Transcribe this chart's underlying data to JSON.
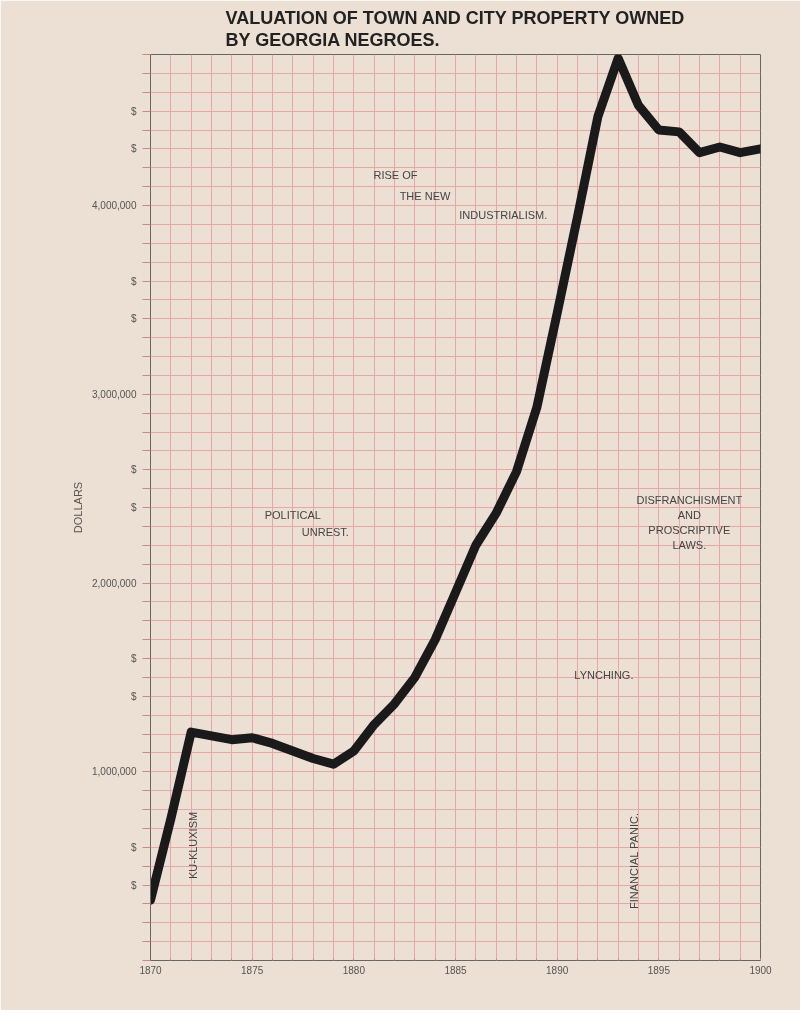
{
  "chart_data": {
    "type": "line",
    "title": "VALUATION OF TOWN AND CITY PROPERTY OWNED\nBY GEORGIA NEGROES.",
    "ylabel": "DOLLARS",
    "x": [
      1870,
      1871,
      1872,
      1873,
      1874,
      1875,
      1876,
      1877,
      1878,
      1879,
      1880,
      1881,
      1882,
      1883,
      1884,
      1885,
      1886,
      1887,
      1888,
      1889,
      1890,
      1891,
      1892,
      1893,
      1894,
      1895,
      1896,
      1897,
      1898,
      1899,
      1900
    ],
    "series": [
      {
        "color": "#1a1a1a",
        "values": [
          320000,
          750000,
          1210000,
          1190000,
          1170000,
          1180000,
          1150000,
          1110000,
          1070000,
          1040000,
          1110000,
          1250000,
          1360000,
          1500000,
          1700000,
          1950000,
          2200000,
          2370000,
          2590000,
          2930000,
          3430000,
          3940000,
          4470000,
          4780000,
          4530000,
          4400000,
          4390000,
          4280000,
          4310000,
          4280000,
          4300000
        ]
      }
    ],
    "xlim": [
      1870,
      1900
    ],
    "ylim": [
      0,
      4800000
    ],
    "xticks": [
      1870,
      {
        "value": 1871,
        "label": null
      },
      {
        "value": 1872,
        "label": null
      },
      {
        "value": 1873,
        "label": null
      },
      {
        "value": 1874,
        "label": null
      },
      1875,
      {
        "value": 1876,
        "label": null
      },
      {
        "value": 1877,
        "label": null
      },
      {
        "value": 1878,
        "label": null
      },
      {
        "value": 1879,
        "label": null
      },
      1880,
      {
        "value": 1881,
        "label": null
      },
      {
        "value": 1882,
        "label": null
      },
      {
        "value": 1883,
        "label": null
      },
      {
        "value": 1884,
        "label": null
      },
      1885,
      {
        "value": 1886,
        "label": null
      },
      {
        "value": 1887,
        "label": null
      },
      {
        "value": 1888,
        "label": null
      },
      {
        "value": 1889,
        "label": null
      },
      1890,
      {
        "value": 1891,
        "label": null
      },
      {
        "value": 1892,
        "label": null
      },
      {
        "value": 1893,
        "label": null
      },
      {
        "value": 1894,
        "label": null
      },
      1895,
      {
        "value": 1896,
        "label": null
      },
      {
        "value": 1897,
        "label": null
      },
      {
        "value": 1898,
        "label": null
      },
      {
        "value": 1899,
        "label": null
      },
      1900
    ],
    "yticks": [
      {
        "value": 0,
        "label": null
      },
      {
        "value": 100000,
        "label": null
      },
      {
        "value": 200000,
        "label": null
      },
      {
        "value": 300000,
        "label": null
      },
      {
        "value": 400000,
        "label": "$"
      },
      {
        "value": 500000,
        "label": null
      },
      {
        "value": 600000,
        "label": "$"
      },
      {
        "value": 700000,
        "label": null
      },
      {
        "value": 800000,
        "label": null
      },
      {
        "value": 900000,
        "label": null
      },
      {
        "value": 1000000,
        "label": "1,000,000"
      },
      {
        "value": 1100000,
        "label": null
      },
      {
        "value": 1200000,
        "label": null
      },
      {
        "value": 1300000,
        "label": null
      },
      {
        "value": 1400000,
        "label": "$"
      },
      {
        "value": 1500000,
        "label": null
      },
      {
        "value": 1600000,
        "label": "$"
      },
      {
        "value": 1700000,
        "label": null
      },
      {
        "value": 1800000,
        "label": null
      },
      {
        "value": 1900000,
        "label": null
      },
      {
        "value": 2000000,
        "label": "2,000,000"
      },
      {
        "value": 2100000,
        "label": null
      },
      {
        "value": 2200000,
        "label": null
      },
      {
        "value": 2300000,
        "label": null
      },
      {
        "value": 2400000,
        "label": "$"
      },
      {
        "value": 2500000,
        "label": null
      },
      {
        "value": 2600000,
        "label": "$"
      },
      {
        "value": 2700000,
        "label": null
      },
      {
        "value": 2800000,
        "label": null
      },
      {
        "value": 2900000,
        "label": null
      },
      {
        "value": 3000000,
        "label": "3,000,000"
      },
      {
        "value": 3100000,
        "label": null
      },
      {
        "value": 3200000,
        "label": null
      },
      {
        "value": 3300000,
        "label": null
      },
      {
        "value": 3400000,
        "label": "$"
      },
      {
        "value": 3500000,
        "label": null
      },
      {
        "value": 3600000,
        "label": "$"
      },
      {
        "value": 3700000,
        "label": null
      },
      {
        "value": 3800000,
        "label": null
      },
      {
        "value": 3900000,
        "label": null
      },
      {
        "value": 4000000,
        "label": "4,000,000"
      },
      {
        "value": 4100000,
        "label": null
      },
      {
        "value": 4200000,
        "label": null
      },
      {
        "value": 4300000,
        "label": "$"
      },
      {
        "value": 4400000,
        "label": null
      },
      {
        "value": 4500000,
        "label": "$"
      },
      {
        "value": 4600000,
        "label": null
      },
      {
        "value": 4700000,
        "label": null
      },
      {
        "value": 4800000,
        "label": null
      }
    ],
    "grid": true,
    "line_style": "solid",
    "annotations": [
      "RISE OF",
      "THE NEW",
      "INDUSTRIALISM.",
      "POLITICAL",
      "UNREST.",
      "DISFRANCHISMENT",
      "AND",
      "PROSCRIPTIVE",
      "LAWS.",
      "LYNCHING.",
      "KU-KLUXISM",
      "FINANCIAL PANIC."
    ]
  }
}
